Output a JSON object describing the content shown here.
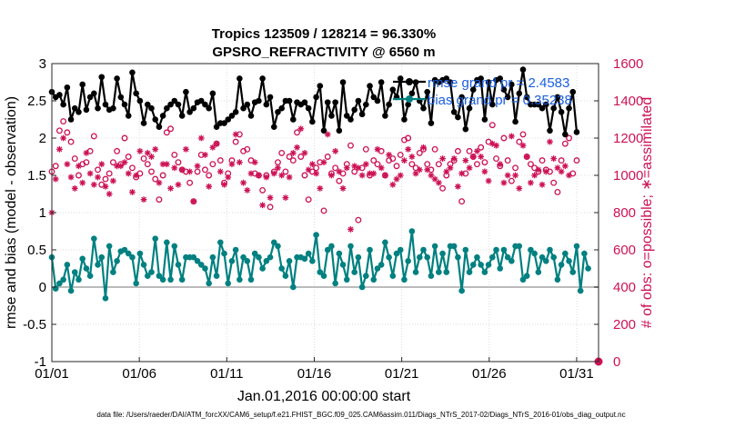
{
  "chart_data": {
    "type": "line",
    "title_line1": "Tropics 123509 / 128214 = 96.330%",
    "title_line2": "GPSRO_REFRACTIVITY @ 6560 m",
    "xlabel": "Jan.01,2016 00:00:00 start",
    "ylabel_left": "rmse and bias (model - observation)",
    "ylabel_right": "# of obs: o=possible; ∗=assimilated",
    "footnote": "data file: /Users/raeder/DAI/ATM_forcXX/CAM6_setup/f.e21.FHIST_BGC.f09_025.CAM6assim.011/Diags_NTrS_2017-02/Diags_NTrS_2016-01/obs_diag_output.nc",
    "x_ticks": [
      {
        "label": "01/01",
        "day": 0
      },
      {
        "label": "01/06",
        "day": 5
      },
      {
        "label": "01/11",
        "day": 10
      },
      {
        "label": "01/16",
        "day": 15
      },
      {
        "label": "01/21",
        "day": 20
      },
      {
        "label": "01/26",
        "day": 25
      },
      {
        "label": "01/31",
        "day": 30
      }
    ],
    "xlim": [
      0,
      31.25
    ],
    "ylim_left": [
      -1,
      3
    ],
    "y_ticks_left": [
      "-1",
      "-0.5",
      "0",
      "0.5",
      "1",
      "1.5",
      "2",
      "2.5",
      "3"
    ],
    "ylim_right": [
      0,
      1600
    ],
    "y_ticks_right": [
      "0",
      "200",
      "400",
      "600",
      "800",
      "1000",
      "1200",
      "1400",
      "1600"
    ],
    "legend": [
      {
        "label": "rmse grand pr = 2.4583",
        "color": "#000000"
      },
      {
        "label": "bias grand pr = 0.35238",
        "color": "#008080"
      }
    ],
    "colors": {
      "rmse": "#000000",
      "bias": "#008080",
      "obs": "#cc1155",
      "zero_line": "#bbbbbb"
    },
    "rmse": [
      2.62,
      2.55,
      2.58,
      2.45,
      2.68,
      2.25,
      2.4,
      2.35,
      2.72,
      2.38,
      2.55,
      2.6,
      2.4,
      2.82,
      2.45,
      2.38,
      2.4,
      2.8,
      2.55,
      2.45,
      2.3,
      2.88,
      2.6,
      2.5,
      2.2,
      2.45,
      2.4,
      2.25,
      2.15,
      2.3,
      2.4,
      2.45,
      2.5,
      2.45,
      2.3,
      2.62,
      2.35,
      2.4,
      2.48,
      2.5,
      2.45,
      2.4,
      2.6,
      2.15,
      2.2,
      2.2,
      2.25,
      2.3,
      2.35,
      2.8,
      2.4,
      2.45,
      2.3,
      2.48,
      2.5,
      2.8,
      2.45,
      2.55,
      2.15,
      2.35,
      2.4,
      2.5,
      2.5,
      2.25,
      2.48,
      2.45,
      2.48,
      2.4,
      2.22,
      2.55,
      2.7,
      2.1,
      2.48,
      2.3,
      2.48,
      2.1,
      2.75,
      2.3,
      2.25,
      2.38,
      2.5,
      2.32,
      2.45,
      2.7,
      2.55,
      2.5,
      2.75,
      2.3,
      2.45,
      2.65,
      2.55,
      2.8,
      2.25,
      2.45,
      2.6,
      2.75,
      2.5,
      2.4,
      2.62,
      2.2,
      2.78,
      2.75,
      2.78,
      2.8,
      2.75,
      2.35,
      2.28,
      2.55,
      2.12,
      2.4,
      2.65,
      2.78,
      2.8,
      2.25,
      2.75,
      2.45,
      2.78,
      2.8,
      2.65,
      2.55,
      2.72,
      2.22,
      2.6,
      2.92,
      2.55,
      2.45,
      2.45,
      2.45,
      2.4,
      2.45,
      2.1,
      2.4,
      2.55,
      2.35,
      2.05,
      2.4,
      2.62,
      2.08
    ],
    "bias": [
      0.4,
      -0.02,
      0.05,
      0.1,
      0.3,
      -0.05,
      0.2,
      0.1,
      0.38,
      0.25,
      0.15,
      0.65,
      0.3,
      0.4,
      -0.15,
      0.55,
      0.2,
      0.35,
      0.48,
      0.5,
      0.45,
      0.4,
      0.05,
      0.45,
      0.3,
      0.15,
      0.2,
      0.65,
      0.15,
      0.1,
      0.6,
      0.1,
      0.55,
      0.3,
      0.1,
      0.4,
      0.4,
      0.4,
      0.35,
      0.3,
      0.25,
      0.05,
      0.4,
      0.15,
      0.6,
      0.45,
      0.05,
      0.35,
      0.5,
      0.1,
      0.4,
      0.35,
      0.1,
      0.45,
      0.4,
      0.25,
      0.35,
      0.4,
      0.6,
      0.55,
      0.25,
      0.15,
      0.35,
      0.0,
      0.4,
      0.4,
      0.38,
      0.45,
      0.35,
      0.7,
      0.2,
      0.15,
      0.5,
      0.55,
      0.05,
      0.45,
      0.3,
      0.1,
      0.55,
      0.2,
      0.4,
      0.0,
      0.15,
      0.5,
      0.1,
      0.25,
      0.3,
      0.6,
      0.4,
      0.15,
      0.45,
      0.5,
      0.1,
      0.35,
      0.75,
      0.2,
      0.4,
      0.5,
      0.4,
      0.15,
      0.55,
      0.2,
      0.45,
      0.2,
      0.55,
      0.55,
      0.4,
      -0.05,
      0.5,
      0.2,
      0.3,
      0.4,
      0.3,
      0.2,
      0.3,
      0.4,
      0.5,
      0.25,
      0.5,
      0.4,
      0.35,
      0.55,
      0.55,
      0.1,
      0.15,
      0.5,
      0.45,
      0.2,
      0.4,
      0.35,
      0.5,
      0.4,
      0.1,
      0.3,
      0.45,
      0.35,
      0.2,
      0.55,
      -0.05,
      0.45,
      0.25
    ],
    "obs_possible": [
      1020,
      1050,
      1240,
      1290,
      1230,
      1180,
      1090,
      1000,
      1060,
      1070,
      1130,
      1210,
      1030,
      950,
      980,
      1010,
      1070,
      1130,
      1060,
      1200,
      1100,
      1040,
      990,
      1010,
      1090,
      1060,
      1020,
      980,
      870,
      1000,
      1230,
      1250,
      1110,
      1070,
      1030,
      1020,
      960,
      860,
      1020,
      1110,
      1030,
      1000,
      1060,
      1170,
      1080,
      960,
      1010,
      1080,
      1180,
      1220,
      1130,
      1140,
      1080,
      1010,
      1000,
      920,
      1000,
      830,
      1020,
      1070,
      1120,
      1020,
      1100,
      1080,
      1230,
      1100,
      1000,
      870,
      1020,
      1040,
      1070,
      810,
      1100,
      1010,
      1040,
      970,
      1010,
      1060,
      1160,
      1020,
      760,
      1040,
      1140,
      1000,
      1080,
      1060,
      1130,
      1000,
      1080,
      1090,
      1050,
      1110,
      1190,
      1200,
      1060,
      1040,
      1120,
      1140,
      1060,
      1030,
      1140,
      1060,
      930,
      1000,
      1060,
      1080,
      1130,
      860,
      1010,
      1130,
      1100,
      1060,
      1150,
      1070,
      1180,
      1270,
      1090,
      1050,
      1200,
      1080,
      970,
      1040,
      1180,
      1220,
      1100,
      1060,
      1040,
      1020,
      1080,
      1030,
      1020,
      960,
      910,
      1080,
      1170,
      1200,
      1010,
      1080
    ],
    "obs_assimilated": [
      800,
      980,
      1140,
      1200,
      1060,
      990,
      930,
      1050,
      960,
      1120,
      1010,
      950,
      990,
      1060,
      940,
      900,
      970,
      1050,
      1050,
      1070,
      1010,
      910,
      1000,
      1130,
      870,
      1120,
      1100,
      1140,
      960,
      1060,
      1060,
      930,
      1040,
      950,
      1030,
      1140,
      1020,
      860,
      1050,
      1200,
      1110,
      940,
      1150,
      1170,
      1020,
      950,
      990,
      1060,
      1220,
      1070,
      960,
      920,
      1010,
      1070,
      1000,
      840,
      990,
      880,
      1010,
      1040,
      1000,
      880,
      990,
      1120,
      1150,
      1250,
      1120,
      1030,
      1060,
      1010,
      930,
      1070,
      1220,
      1000,
      1130,
      1020,
      930,
      1040,
      710,
      1050,
      1040,
      1000,
      1060,
      1010,
      1010,
      1140,
      1040,
      1000,
      1110,
      950,
      980,
      1000,
      1080,
      1140,
      1100,
      1010,
      1030,
      1150,
      1030,
      1000,
      980,
      960,
      1090,
      1020,
      1040,
      1090,
      940,
      1010,
      1080,
      1040,
      1100,
      1130,
      1100,
      1020,
      970,
      1170,
      1160,
      1060,
      960,
      1000,
      1210,
      1000,
      930,
      1160,
      1100,
      960,
      1000,
      1030,
      950,
      1020,
      1180,
      1090,
      1040,
      1020,
      1050,
      1000
    ],
    "obs_extra_low_value": 0
  }
}
